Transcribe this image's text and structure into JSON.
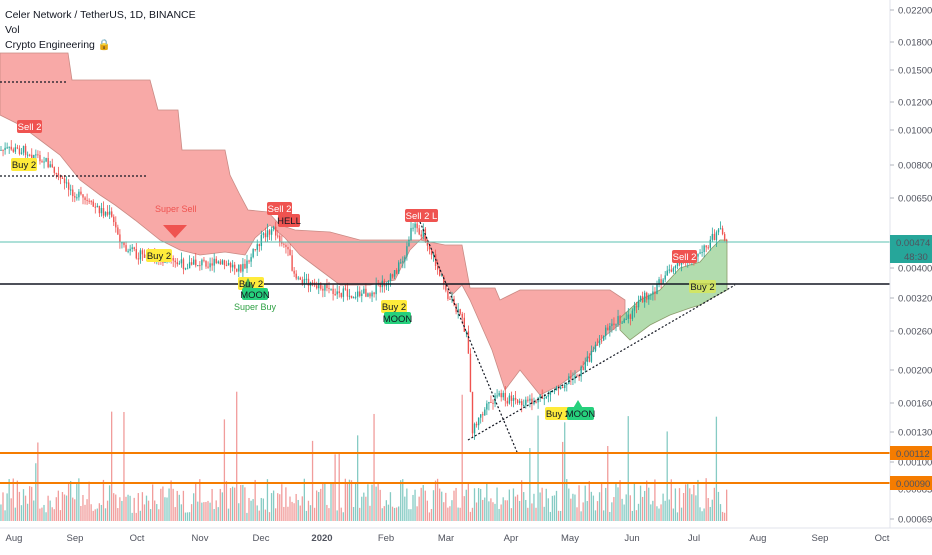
{
  "header": {
    "title": "Celer Network / TetherUS, 1D, BINANCE",
    "indicator_vol": "Vol",
    "indicator_script": "Crypto Engineering 🔒"
  },
  "price_axis": {
    "ticks": [
      "0.02200",
      "0.01800",
      "0.01500",
      "0.01200",
      "0.01000",
      "0.00800",
      "0.00650",
      "0.00500",
      "0.00400",
      "0.00320",
      "0.00260",
      "0.00200",
      "0.00160",
      "0.00130",
      "0.00100",
      "0.00083",
      "0.00069"
    ],
    "current_price": "0.00474",
    "countdown": "48:30",
    "level_1": "0.00112",
    "level_2": "0.00090"
  },
  "time_axis": {
    "labels": [
      "Aug",
      "Sep",
      "Oct",
      "Nov",
      "Dec",
      "2020",
      "Feb",
      "Mar",
      "Apr",
      "May",
      "Jun",
      "Jul",
      "Aug",
      "Sep",
      "Oct"
    ]
  },
  "signals": [
    {
      "text": "Sell 2",
      "kind": "sell"
    },
    {
      "text": "Buy 2",
      "kind": "buy"
    },
    {
      "text": "Super Sell",
      "kind": "label-red"
    },
    {
      "text": "Buy 2",
      "kind": "buy"
    },
    {
      "text": "Sell 2",
      "kind": "sell"
    },
    {
      "text": "HELL",
      "kind": "sell"
    },
    {
      "text": "Buy 2",
      "kind": "buy"
    },
    {
      "text": "MOON",
      "kind": "moon"
    },
    {
      "text": "Super Buy",
      "kind": "label-green"
    },
    {
      "text": "Sell 2 L",
      "kind": "sell"
    },
    {
      "text": "Buy 2",
      "kind": "buy"
    },
    {
      "text": "MOON",
      "kind": "moon"
    },
    {
      "text": "Buy 2",
      "kind": "buy"
    },
    {
      "text": "MOON",
      "kind": "moon"
    },
    {
      "text": "Sell 2",
      "kind": "sell"
    },
    {
      "text": "Buy 2",
      "kind": "buy"
    }
  ],
  "colors": {
    "up": "#26a69a",
    "down": "#ef5350",
    "cloud_red": "#f8a9a7",
    "cloud_green": "#a5d6a0",
    "level_orange": "#f57c00",
    "price_line": "#5bc0b0"
  }
}
